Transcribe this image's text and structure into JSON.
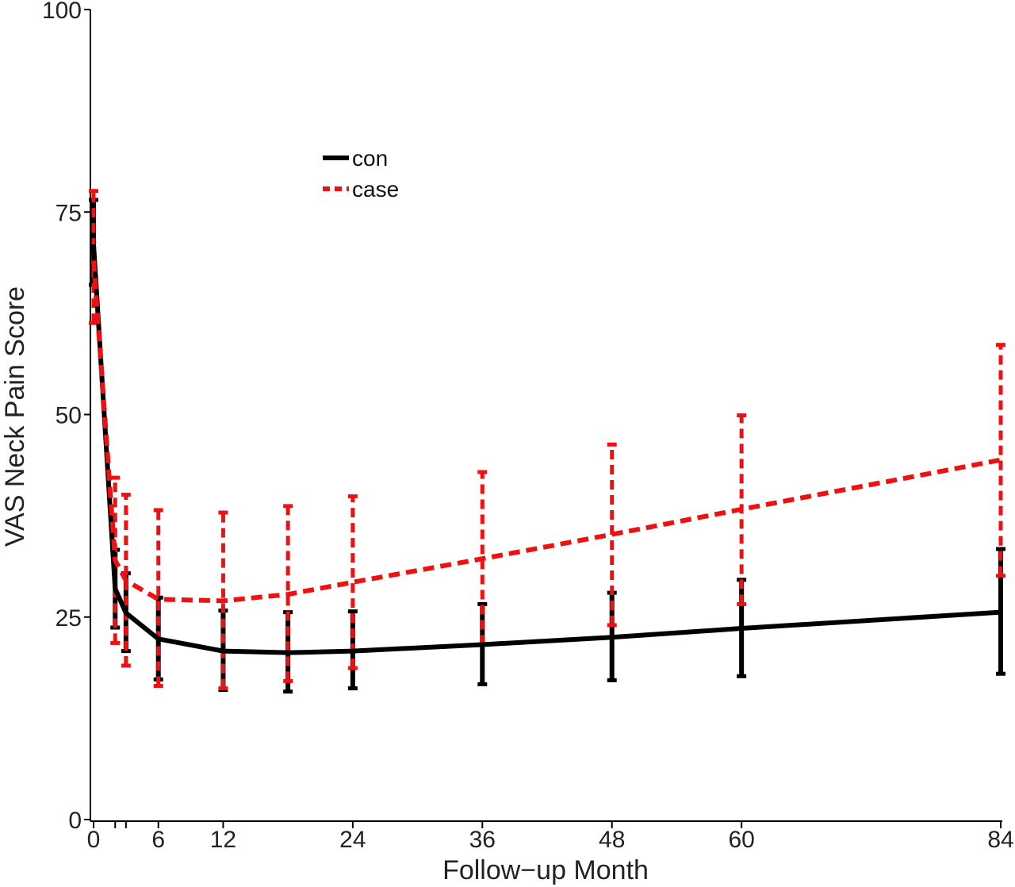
{
  "chart_data": {
    "type": "line",
    "xlabel": "Follow−up Month",
    "ylabel": "VAS Neck Pain Score",
    "xlim": [
      0,
      84
    ],
    "ylim": [
      0,
      100
    ],
    "x_ticks": [
      0,
      6,
      12,
      24,
      36,
      48,
      60,
      84
    ],
    "x_minor_ticks": [
      2,
      3
    ],
    "y_ticks": [
      0,
      25,
      50,
      75,
      100
    ],
    "grid": false,
    "legend": "upper-left-center",
    "series": [
      {
        "name": "con",
        "color": "#000000",
        "style": "solid",
        "x": [
          0,
          2,
          3,
          6,
          12,
          18,
          24,
          36,
          48,
          60,
          84
        ],
        "y": [
          71,
          28.5,
          25.5,
          22.3,
          20.8,
          20.6,
          20.8,
          21.6,
          22.5,
          23.6,
          25.6
        ],
        "err_low": [
          66,
          23.7,
          20.8,
          17.3,
          16,
          15.8,
          16.2,
          16.7,
          17.2,
          17.7,
          18
        ],
        "err_high": [
          76.5,
          33.3,
          30.4,
          27.4,
          25.8,
          25.6,
          25.7,
          26.6,
          28,
          29.6,
          33.4
        ]
      },
      {
        "name": "case",
        "color": "#ee1111",
        "style": "dashed",
        "x": [
          0,
          2,
          3,
          6,
          12,
          18,
          24,
          36,
          48,
          60,
          84
        ],
        "y": [
          69,
          32,
          29.5,
          27.2,
          27,
          27.8,
          29.3,
          32.2,
          35.2,
          38.3,
          44.4
        ],
        "err_low": [
          61.3,
          21.8,
          19,
          16.5,
          16.2,
          17.1,
          18.7,
          21.6,
          24,
          26.6,
          30.1
        ],
        "err_high": [
          77.6,
          42.2,
          40.1,
          38.2,
          37.9,
          38.7,
          39.9,
          42.9,
          46.3,
          49.9,
          58.6
        ]
      }
    ]
  }
}
